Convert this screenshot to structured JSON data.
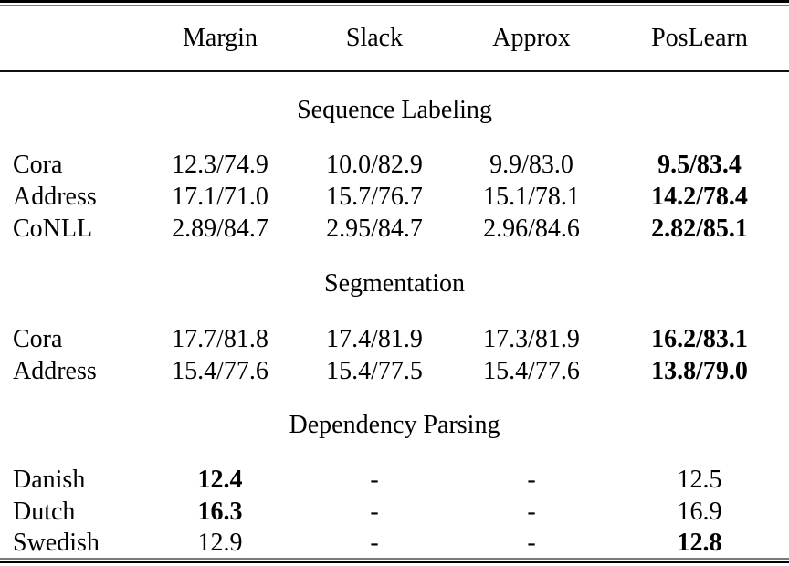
{
  "table": {
    "header": {
      "columns": [
        "Margin",
        "Slack",
        "Approx",
        "PosLearn"
      ]
    },
    "sections": [
      {
        "title": "Sequence Labeling",
        "rows": [
          {
            "label": "Cora",
            "cells": [
              {
                "text": "12.3/74.9",
                "bold": false
              },
              {
                "text": "10.0/82.9",
                "bold": false
              },
              {
                "text": "9.9/83.0",
                "bold": false
              },
              {
                "text": "9.5/83.4",
                "bold": true
              }
            ]
          },
          {
            "label": "Address",
            "cells": [
              {
                "text": "17.1/71.0",
                "bold": false
              },
              {
                "text": "15.7/76.7",
                "bold": false
              },
              {
                "text": "15.1/78.1",
                "bold": false
              },
              {
                "text": "14.2/78.4",
                "bold": true
              }
            ]
          },
          {
            "label": "CoNLL",
            "cells": [
              {
                "text": "2.89/84.7",
                "bold": false
              },
              {
                "text": "2.95/84.7",
                "bold": false
              },
              {
                "text": "2.96/84.6",
                "bold": false
              },
              {
                "text": "2.82/85.1",
                "bold": true
              }
            ]
          }
        ]
      },
      {
        "title": "Segmentation",
        "rows": [
          {
            "label": "Cora",
            "cells": [
              {
                "text": "17.7/81.8",
                "bold": false
              },
              {
                "text": "17.4/81.9",
                "bold": false
              },
              {
                "text": "17.3/81.9",
                "bold": false
              },
              {
                "text": "16.2/83.1",
                "bold": true
              }
            ]
          },
          {
            "label": "Address",
            "cells": [
              {
                "text": "15.4/77.6",
                "bold": false
              },
              {
                "text": "15.4/77.5",
                "bold": false
              },
              {
                "text": "15.4/77.6",
                "bold": false
              },
              {
                "text": "13.8/79.0",
                "bold": true
              }
            ]
          }
        ]
      },
      {
        "title": "Dependency Parsing",
        "rows": [
          {
            "label": "Danish",
            "cells": [
              {
                "text": "12.4",
                "bold": true
              },
              {
                "text": "-",
                "bold": false
              },
              {
                "text": "-",
                "bold": false
              },
              {
                "text": "12.5",
                "bold": false
              }
            ]
          },
          {
            "label": "Dutch",
            "cells": [
              {
                "text": "16.3",
                "bold": true
              },
              {
                "text": "-",
                "bold": false
              },
              {
                "text": "-",
                "bold": false
              },
              {
                "text": "16.9",
                "bold": false
              }
            ]
          },
          {
            "label": "Swedish",
            "cells": [
              {
                "text": "12.9",
                "bold": false
              },
              {
                "text": "-",
                "bold": false
              },
              {
                "text": "-",
                "bold": false
              },
              {
                "text": "12.8",
                "bold": true
              }
            ]
          }
        ]
      }
    ],
    "colors": {
      "rule": "#000000",
      "rule_light": "#7a7a7a",
      "text": "#000000",
      "background": "#ffffff"
    }
  }
}
